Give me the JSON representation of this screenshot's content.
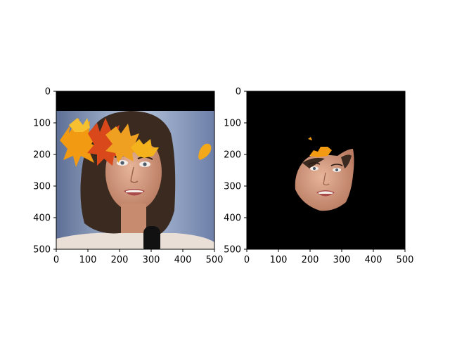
{
  "chart_data": [
    {
      "type": "image",
      "title": "",
      "xlabel": "",
      "ylabel": "",
      "xlim": [
        0,
        500
      ],
      "ylim": [
        500,
        0
      ],
      "xticks": [
        0,
        100,
        200,
        300,
        400,
        500
      ],
      "yticks": [
        0,
        100,
        200,
        300,
        400,
        500
      ],
      "content": "photo of woman with autumn leaves overlay"
    },
    {
      "type": "image",
      "title": "",
      "xlabel": "",
      "ylabel": "",
      "xlim": [
        0,
        500
      ],
      "ylim": [
        500,
        0
      ],
      "xticks": [
        0,
        100,
        200,
        300,
        400,
        500
      ],
      "yticks": [
        0,
        100,
        200,
        300,
        400,
        500
      ],
      "content": "segmented face mask on black background"
    }
  ],
  "colors": {
    "leaf_orange": "#f29a12",
    "leaf_red": "#d9481a",
    "background_blue": "#8fa6c8",
    "hair": "#3a2a20",
    "skin": "#d9a48b"
  }
}
